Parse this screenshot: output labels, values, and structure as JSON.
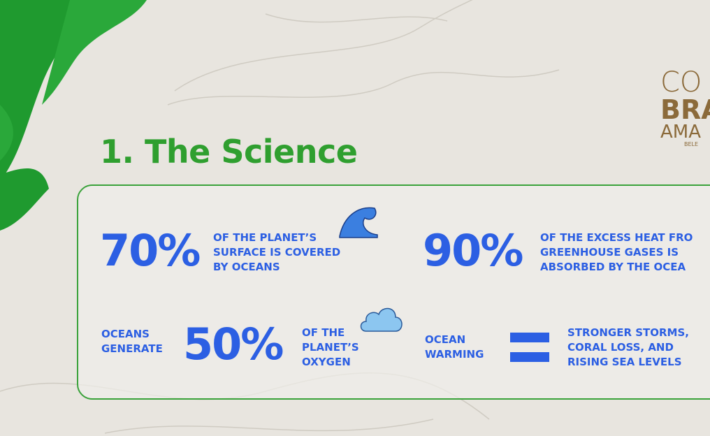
{
  "title": "1. The Science",
  "logo": {
    "lines": [
      "CO",
      "BRA",
      "AMA",
      "BELE"
    ]
  },
  "facts": [
    {
      "figure": "70%",
      "lines": [
        "OF THE PLANET’S",
        "SURFACE IS COVERED",
        "BY OCEANS"
      ]
    },
    {
      "figure": "90%",
      "lines": [
        "OF THE EXCESS HEAT FRO",
        "GREENHOUSE GASES IS",
        "ABSORBED BY THE OCEA"
      ]
    },
    {
      "lead": [
        "OCEANS",
        "GENERATE"
      ],
      "figure": "50%",
      "lines": [
        "OF THE",
        "PLANET’S",
        "OXYGEN"
      ]
    },
    {
      "lead": [
        "OCEAN",
        "WARMING"
      ],
      "lines": [
        "STRONGER STORMS,",
        "CORAL LOSS, AND",
        "RISING SEA LEVELS"
      ]
    }
  ]
}
